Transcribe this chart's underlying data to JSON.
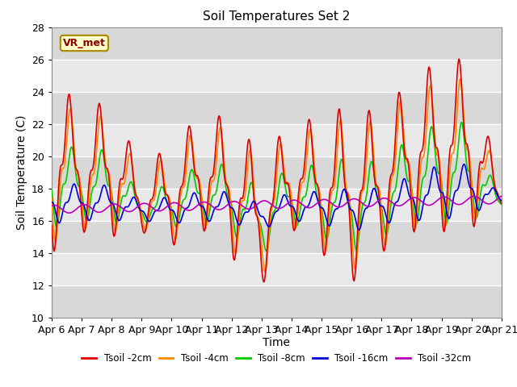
{
  "title": "Soil Temperatures Set 2",
  "xlabel": "Time",
  "ylabel": "Soil Temperature (C)",
  "ylim": [
    10,
    28
  ],
  "xlim": [
    0,
    360
  ],
  "annotation": "VR_met",
  "plot_bg_color": "#e0e0e0",
  "series_colors": [
    "#dd0000",
    "#ff8800",
    "#00cc00",
    "#0000dd",
    "#bb00bb"
  ],
  "series_labels": [
    "Tsoil -2cm",
    "Tsoil -4cm",
    "Tsoil -8cm",
    "Tsoil -16cm",
    "Tsoil -32cm"
  ],
  "xtick_positions": [
    0,
    24,
    48,
    72,
    96,
    120,
    144,
    168,
    192,
    216,
    240,
    264,
    288,
    312,
    336,
    360
  ],
  "xtick_labels": [
    "Apr 6",
    "Apr 7",
    "Apr 8",
    "Apr 9",
    "Apr 10",
    "Apr 11",
    "Apr 12",
    "Apr 13",
    "Apr 14",
    "Apr 15",
    "Apr 16",
    "Apr 17",
    "Apr 18",
    "Apr 19",
    "Apr 20",
    "Apr 21"
  ],
  "ytick_positions": [
    10,
    12,
    14,
    16,
    18,
    20,
    22,
    24,
    26,
    28
  ],
  "grid_color": "#ffffff",
  "figsize": [
    6.4,
    4.8
  ],
  "dpi": 100
}
